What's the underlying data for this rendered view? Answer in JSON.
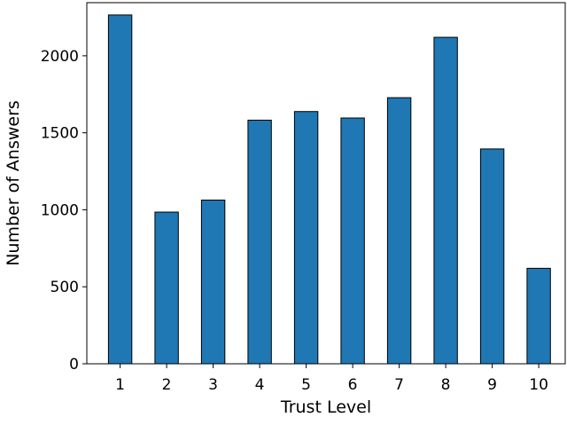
{
  "chart_data": {
    "type": "bar",
    "categories": [
      "1",
      "2",
      "3",
      "4",
      "5",
      "6",
      "7",
      "8",
      "9",
      "10"
    ],
    "values": [
      2265,
      985,
      1063,
      1582,
      1638,
      1596,
      1728,
      2120,
      1395,
      620
    ],
    "xlabel": "Trust Level",
    "ylabel": "Number of Answers",
    "ylim": [
      0,
      2345
    ],
    "yticks": [
      0,
      500,
      1000,
      1500,
      2000
    ],
    "grid": false,
    "bar_color": "#1f77b4",
    "edge_color": "#000000"
  }
}
